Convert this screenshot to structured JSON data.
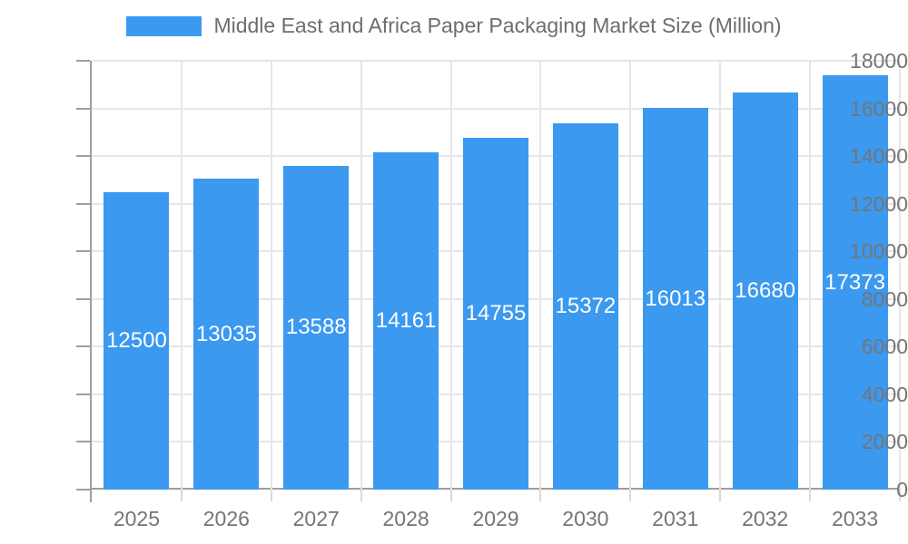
{
  "chart_data": {
    "type": "bar",
    "title": "Middle East and Africa Paper Packaging Market Size (Million)",
    "categories": [
      "2025",
      "2026",
      "2027",
      "2028",
      "2029",
      "2030",
      "2031",
      "2032",
      "2033"
    ],
    "values": [
      12500,
      13035,
      13588,
      14161,
      14755,
      15372,
      16013,
      16680,
      17373
    ],
    "xlabel": "",
    "ylabel": "",
    "ylim": [
      0,
      18000
    ],
    "ytick_step": 2000,
    "y_tick_labels": [
      "0",
      "2000",
      "4000",
      "6000",
      "8000",
      "10000",
      "12000",
      "14000",
      "16000",
      "18000"
    ],
    "grid": true,
    "legend_position": "top",
    "bar_labels_inside": true
  },
  "colors": {
    "bar": "#3B99F0",
    "bar_label": "#ffffff",
    "grid": "#e6e6e6",
    "axis": "#9e9e9e",
    "x_boundary_tick": "#d9d9d9",
    "tick_label": "#757575",
    "legend_text": "#6d6d6d",
    "background": "#ffffff"
  }
}
